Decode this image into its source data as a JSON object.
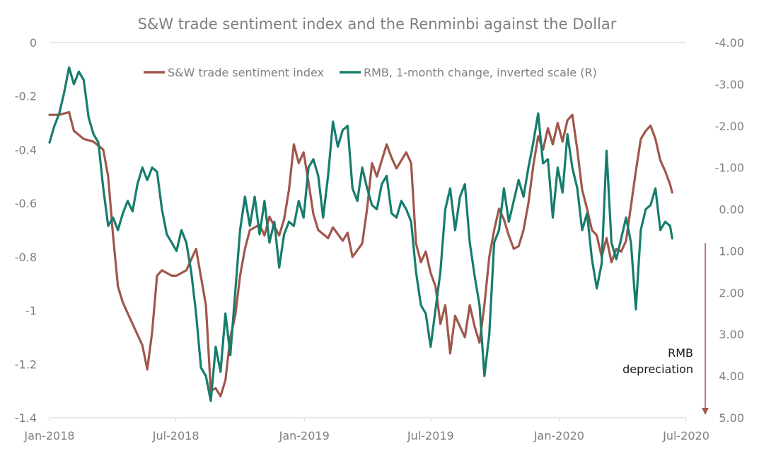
{
  "chart_data": {
    "type": "line",
    "title": "S&W trade sentiment index and the Renminbi against the Dollar",
    "x_range": [
      "2018-01-01",
      "2020-07-01"
    ],
    "x_ticks": [
      {
        "date": "2018-01-01",
        "label": "Jan-2018"
      },
      {
        "date": "2018-07-01",
        "label": "Jul-2018"
      },
      {
        "date": "2019-01-01",
        "label": "Jan-2019"
      },
      {
        "date": "2019-07-01",
        "label": "Jul-2019"
      },
      {
        "date": "2020-01-01",
        "label": "Jan-2020"
      },
      {
        "date": "2020-07-01",
        "label": "Jul-2020"
      }
    ],
    "y_left": {
      "range": [
        -1.4,
        0
      ],
      "ticks": [
        0,
        -0.2,
        -0.4,
        -0.6,
        -0.8,
        -1,
        -1.2,
        -1.4
      ],
      "tick_labels": [
        "0",
        "-0.2",
        "-0.4",
        "-0.6",
        "-0.8",
        "-1",
        "-1.2",
        "-1.4"
      ]
    },
    "y_right": {
      "range": [
        -4.0,
        5.0
      ],
      "inverted": true,
      "ticks": [
        -4,
        -3,
        -2,
        -1,
        0,
        1,
        2,
        3,
        4,
        5
      ],
      "tick_labels": [
        "-4.00",
        "-3.00",
        "-2.00",
        "-1.00",
        "0.00",
        "1.00",
        "2.00",
        "3.00",
        "4.00",
        "5.00"
      ]
    },
    "legend_position": "top-center",
    "gridlines": false,
    "annotation": {
      "lines": [
        "RMB",
        "depreciation"
      ],
      "arrow_color": "#a0574b"
    },
    "series": [
      {
        "name": "S&W trade sentiment index",
        "axis": "left",
        "color": "#a0574b",
        "points": [
          [
            "2018-01-01",
            -0.27
          ],
          [
            "2018-01-15",
            -0.27
          ],
          [
            "2018-01-29",
            -0.26
          ],
          [
            "2018-02-05",
            -0.33
          ],
          [
            "2018-02-19",
            -0.36
          ],
          [
            "2018-03-05",
            -0.37
          ],
          [
            "2018-03-19",
            -0.4
          ],
          [
            "2018-03-26",
            -0.5
          ],
          [
            "2018-04-02",
            -0.72
          ],
          [
            "2018-04-09",
            -0.91
          ],
          [
            "2018-04-16",
            -0.97
          ],
          [
            "2018-04-23",
            -1.01
          ],
          [
            "2018-05-07",
            -1.09
          ],
          [
            "2018-05-14",
            -1.13
          ],
          [
            "2018-05-21",
            -1.22
          ],
          [
            "2018-05-28",
            -1.08
          ],
          [
            "2018-06-04",
            -0.87
          ],
          [
            "2018-06-11",
            -0.85
          ],
          [
            "2018-06-25",
            -0.87
          ],
          [
            "2018-07-02",
            -0.87
          ],
          [
            "2018-07-16",
            -0.85
          ],
          [
            "2018-07-30",
            -0.77
          ],
          [
            "2018-08-13",
            -0.98
          ],
          [
            "2018-08-20",
            -1.3
          ],
          [
            "2018-08-27",
            -1.29
          ],
          [
            "2018-09-03",
            -1.32
          ],
          [
            "2018-09-10",
            -1.26
          ],
          [
            "2018-09-17",
            -1.1
          ],
          [
            "2018-09-24",
            -1.02
          ],
          [
            "2018-10-01",
            -0.87
          ],
          [
            "2018-10-08",
            -0.77
          ],
          [
            "2018-10-15",
            -0.7
          ],
          [
            "2018-10-29",
            -0.68
          ],
          [
            "2018-11-05",
            -0.72
          ],
          [
            "2018-11-12",
            -0.65
          ],
          [
            "2018-11-26",
            -0.72
          ],
          [
            "2018-12-03",
            -0.66
          ],
          [
            "2018-12-10",
            -0.55
          ],
          [
            "2018-12-17",
            -0.38
          ],
          [
            "2018-12-24",
            -0.45
          ],
          [
            "2018-12-31",
            -0.41
          ],
          [
            "2019-01-07",
            -0.52
          ],
          [
            "2019-01-14",
            -0.64
          ],
          [
            "2019-01-21",
            -0.7
          ],
          [
            "2019-02-04",
            -0.73
          ],
          [
            "2019-02-11",
            -0.69
          ],
          [
            "2019-02-25",
            -0.74
          ],
          [
            "2019-03-04",
            -0.71
          ],
          [
            "2019-03-11",
            -0.8
          ],
          [
            "2019-03-25",
            -0.75
          ],
          [
            "2019-04-01",
            -0.62
          ],
          [
            "2019-04-08",
            -0.45
          ],
          [
            "2019-04-15",
            -0.5
          ],
          [
            "2019-04-29",
            -0.38
          ],
          [
            "2019-05-06",
            -0.43
          ],
          [
            "2019-05-13",
            -0.47
          ],
          [
            "2019-05-20",
            -0.44
          ],
          [
            "2019-05-27",
            -0.41
          ],
          [
            "2019-06-03",
            -0.45
          ],
          [
            "2019-06-10",
            -0.75
          ],
          [
            "2019-06-17",
            -0.82
          ],
          [
            "2019-06-24",
            -0.78
          ],
          [
            "2019-07-01",
            -0.86
          ],
          [
            "2019-07-08",
            -0.91
          ],
          [
            "2019-07-15",
            -1.05
          ],
          [
            "2019-07-22",
            -0.98
          ],
          [
            "2019-07-29",
            -1.16
          ],
          [
            "2019-08-05",
            -1.02
          ],
          [
            "2019-08-12",
            -1.06
          ],
          [
            "2019-08-19",
            -1.1
          ],
          [
            "2019-08-26",
            -0.98
          ],
          [
            "2019-09-02",
            -1.06
          ],
          [
            "2019-09-09",
            -1.12
          ],
          [
            "2019-09-16",
            -0.98
          ],
          [
            "2019-09-23",
            -0.8
          ],
          [
            "2019-09-30",
            -0.7
          ],
          [
            "2019-10-07",
            -0.62
          ],
          [
            "2019-10-14",
            -0.66
          ],
          [
            "2019-10-21",
            -0.72
          ],
          [
            "2019-10-28",
            -0.77
          ],
          [
            "2019-11-04",
            -0.76
          ],
          [
            "2019-11-11",
            -0.7
          ],
          [
            "2019-11-18",
            -0.6
          ],
          [
            "2019-11-25",
            -0.46
          ],
          [
            "2019-12-02",
            -0.35
          ],
          [
            "2019-12-09",
            -0.4
          ],
          [
            "2019-12-16",
            -0.32
          ],
          [
            "2019-12-23",
            -0.38
          ],
          [
            "2019-12-30",
            -0.3
          ],
          [
            "2020-01-06",
            -0.37
          ],
          [
            "2020-01-13",
            -0.29
          ],
          [
            "2020-01-20",
            -0.27
          ],
          [
            "2020-01-27",
            -0.4
          ],
          [
            "2020-02-03",
            -0.55
          ],
          [
            "2020-02-10",
            -0.62
          ],
          [
            "2020-02-17",
            -0.7
          ],
          [
            "2020-02-24",
            -0.72
          ],
          [
            "2020-03-02",
            -0.8
          ],
          [
            "2020-03-09",
            -0.73
          ],
          [
            "2020-03-16",
            -0.82
          ],
          [
            "2020-03-23",
            -0.77
          ],
          [
            "2020-03-30",
            -0.78
          ],
          [
            "2020-04-06",
            -0.74
          ],
          [
            "2020-04-13",
            -0.61
          ],
          [
            "2020-04-20",
            -0.48
          ],
          [
            "2020-04-27",
            -0.36
          ],
          [
            "2020-05-04",
            -0.33
          ],
          [
            "2020-05-11",
            -0.31
          ],
          [
            "2020-05-18",
            -0.36
          ],
          [
            "2020-05-25",
            -0.44
          ],
          [
            "2020-06-01",
            -0.48
          ],
          [
            "2020-06-08",
            -0.53
          ],
          [
            "2020-06-11",
            -0.56
          ]
        ]
      },
      {
        "name": "RMB, 1-month change, inverted scale (R)",
        "axis": "right",
        "color": "#167d6d",
        "points": [
          [
            "2018-01-01",
            -1.6
          ],
          [
            "2018-01-08",
            -2.0
          ],
          [
            "2018-01-15",
            -2.3
          ],
          [
            "2018-01-22",
            -2.8
          ],
          [
            "2018-01-29",
            -3.4
          ],
          [
            "2018-02-05",
            -3.0
          ],
          [
            "2018-02-12",
            -3.3
          ],
          [
            "2018-02-19",
            -3.1
          ],
          [
            "2018-02-26",
            -2.2
          ],
          [
            "2018-03-05",
            -1.8
          ],
          [
            "2018-03-12",
            -1.6
          ],
          [
            "2018-03-19",
            -0.5
          ],
          [
            "2018-03-26",
            0.4
          ],
          [
            "2018-04-02",
            0.2
          ],
          [
            "2018-04-09",
            0.5
          ],
          [
            "2018-04-16",
            0.1
          ],
          [
            "2018-04-23",
            -0.2
          ],
          [
            "2018-04-30",
            0.05
          ],
          [
            "2018-05-07",
            -0.6
          ],
          [
            "2018-05-14",
            -1.0
          ],
          [
            "2018-05-21",
            -0.7
          ],
          [
            "2018-05-28",
            -1.0
          ],
          [
            "2018-06-04",
            -0.9
          ],
          [
            "2018-06-11",
            0.0
          ],
          [
            "2018-06-18",
            0.6
          ],
          [
            "2018-06-25",
            0.8
          ],
          [
            "2018-07-02",
            1.0
          ],
          [
            "2018-07-09",
            0.5
          ],
          [
            "2018-07-16",
            0.8
          ],
          [
            "2018-07-23",
            1.5
          ],
          [
            "2018-07-30",
            2.5
          ],
          [
            "2018-08-06",
            3.8
          ],
          [
            "2018-08-13",
            4.0
          ],
          [
            "2018-08-20",
            4.6
          ],
          [
            "2018-08-27",
            3.3
          ],
          [
            "2018-09-03",
            3.9
          ],
          [
            "2018-09-10",
            2.5
          ],
          [
            "2018-09-17",
            3.5
          ],
          [
            "2018-09-24",
            2.0
          ],
          [
            "2018-10-01",
            0.5
          ],
          [
            "2018-10-08",
            -0.3
          ],
          [
            "2018-10-15",
            0.4
          ],
          [
            "2018-10-22",
            -0.3
          ],
          [
            "2018-10-29",
            0.6
          ],
          [
            "2018-11-05",
            -0.2
          ],
          [
            "2018-11-12",
            0.8
          ],
          [
            "2018-11-19",
            0.3
          ],
          [
            "2018-11-26",
            1.4
          ],
          [
            "2018-12-03",
            0.6
          ],
          [
            "2018-12-10",
            0.3
          ],
          [
            "2018-12-17",
            0.4
          ],
          [
            "2018-12-24",
            -0.2
          ],
          [
            "2018-12-31",
            0.2
          ],
          [
            "2019-01-07",
            -1.0
          ],
          [
            "2019-01-14",
            -1.2
          ],
          [
            "2019-01-21",
            -0.8
          ],
          [
            "2019-01-28",
            0.2
          ],
          [
            "2019-02-04",
            -0.8
          ],
          [
            "2019-02-11",
            -2.1
          ],
          [
            "2019-02-18",
            -1.5
          ],
          [
            "2019-02-25",
            -1.9
          ],
          [
            "2019-03-04",
            -2.0
          ],
          [
            "2019-03-11",
            -0.5
          ],
          [
            "2019-03-18",
            -0.2
          ],
          [
            "2019-03-25",
            -1.0
          ],
          [
            "2019-04-01",
            -0.5
          ],
          [
            "2019-04-08",
            -0.1
          ],
          [
            "2019-04-15",
            0.0
          ],
          [
            "2019-04-22",
            -0.6
          ],
          [
            "2019-04-29",
            -0.8
          ],
          [
            "2019-05-06",
            0.1
          ],
          [
            "2019-05-13",
            0.2
          ],
          [
            "2019-05-20",
            -0.2
          ],
          [
            "2019-05-27",
            0.0
          ],
          [
            "2019-06-03",
            0.3
          ],
          [
            "2019-06-10",
            1.5
          ],
          [
            "2019-06-17",
            2.3
          ],
          [
            "2019-06-24",
            2.5
          ],
          [
            "2019-07-01",
            3.3
          ],
          [
            "2019-07-08",
            2.4
          ],
          [
            "2019-07-15",
            1.5
          ],
          [
            "2019-07-22",
            0.0
          ],
          [
            "2019-07-29",
            -0.5
          ],
          [
            "2019-08-05",
            0.5
          ],
          [
            "2019-08-12",
            -0.3
          ],
          [
            "2019-08-19",
            -0.6
          ],
          [
            "2019-08-26",
            0.8
          ],
          [
            "2019-09-02",
            1.6
          ],
          [
            "2019-09-09",
            2.3
          ],
          [
            "2019-09-16",
            4.0
          ],
          [
            "2019-09-23",
            3.0
          ],
          [
            "2019-09-30",
            0.8
          ],
          [
            "2019-10-07",
            0.5
          ],
          [
            "2019-10-14",
            -0.5
          ],
          [
            "2019-10-21",
            0.3
          ],
          [
            "2019-10-28",
            -0.2
          ],
          [
            "2019-11-04",
            -0.7
          ],
          [
            "2019-11-11",
            -0.3
          ],
          [
            "2019-11-18",
            -1.0
          ],
          [
            "2019-11-25",
            -1.6
          ],
          [
            "2019-12-02",
            -2.3
          ],
          [
            "2019-12-09",
            -1.1
          ],
          [
            "2019-12-16",
            -1.2
          ],
          [
            "2019-12-23",
            0.2
          ],
          [
            "2019-12-30",
            -1.0
          ],
          [
            "2020-01-06",
            -0.4
          ],
          [
            "2020-01-13",
            -1.8
          ],
          [
            "2020-01-20",
            -1.0
          ],
          [
            "2020-01-27",
            -0.5
          ],
          [
            "2020-02-03",
            0.5
          ],
          [
            "2020-02-10",
            0.1
          ],
          [
            "2020-02-17",
            1.2
          ],
          [
            "2020-02-24",
            1.9
          ],
          [
            "2020-03-02",
            1.3
          ],
          [
            "2020-03-09",
            -1.4
          ],
          [
            "2020-03-16",
            0.8
          ],
          [
            "2020-03-23",
            1.2
          ],
          [
            "2020-03-30",
            0.7
          ],
          [
            "2020-04-06",
            0.2
          ],
          [
            "2020-04-13",
            0.8
          ],
          [
            "2020-04-20",
            2.4
          ],
          [
            "2020-04-27",
            0.5
          ],
          [
            "2020-05-04",
            0.0
          ],
          [
            "2020-05-11",
            -0.1
          ],
          [
            "2020-05-18",
            -0.5
          ],
          [
            "2020-05-25",
            0.5
          ],
          [
            "2020-06-01",
            0.3
          ],
          [
            "2020-06-08",
            0.4
          ],
          [
            "2020-06-11",
            0.7
          ]
        ]
      }
    ]
  }
}
